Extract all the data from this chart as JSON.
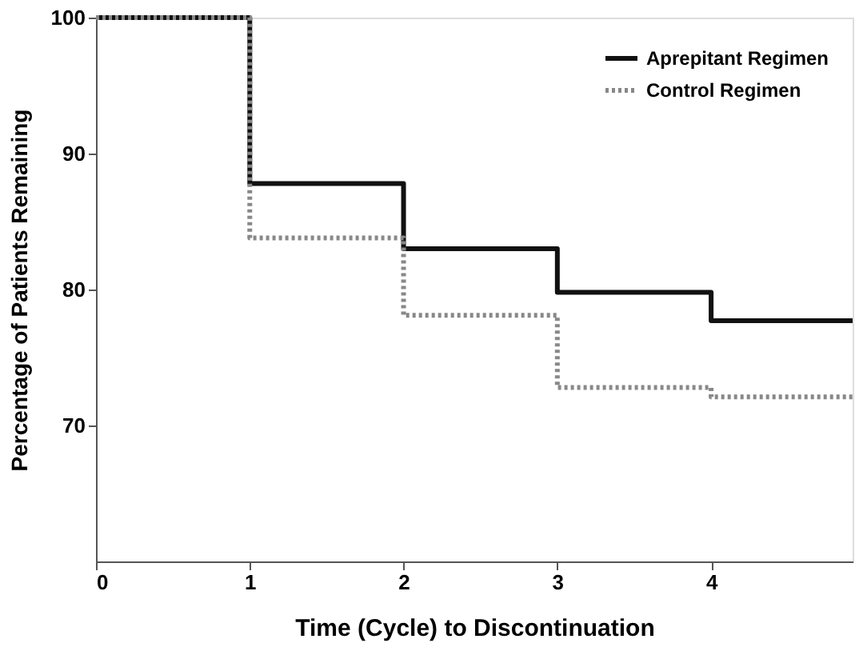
{
  "chart_data": {
    "type": "step",
    "xlabel": "Time (Cycle) to Discontinuation",
    "ylabel": "Percentage of Patients Remaining",
    "x": [
      0,
      1,
      2,
      3,
      4,
      4.92
    ],
    "series": [
      {
        "name": "Aprepitant Regimen",
        "color": "#111111",
        "line_style": "solid",
        "values": [
          100,
          87.8,
          83.0,
          79.8,
          77.7,
          77.7
        ]
      },
      {
        "name": "Control Regimen",
        "color": "#888888",
        "line_style": "dotted",
        "values": [
          100,
          83.8,
          78.1,
          72.8,
          72.1,
          72.1
        ]
      }
    ],
    "xlim": [
      0,
      4.92
    ],
    "ylim": [
      60,
      100
    ],
    "xticks": [
      0,
      1,
      2,
      3,
      4
    ],
    "yticks": [
      70,
      80,
      90,
      100
    ],
    "grid": false,
    "legend": "top right",
    "marker": "none"
  }
}
